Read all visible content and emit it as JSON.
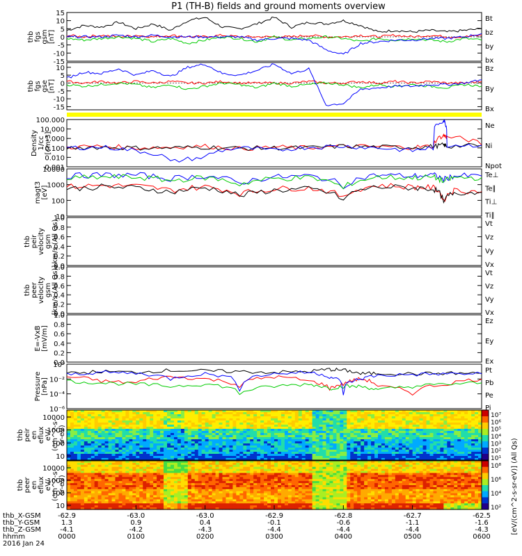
{
  "title": "P1 (TH-B) fields and ground moments overview",
  "colors": {
    "black": "#000000",
    "red": "#ff0000",
    "green": "#00cc00",
    "blue": "#0000ff",
    "yellow": "#ffff00"
  },
  "chart_data": [
    {
      "type": "line",
      "id": "fgs_gsm",
      "ylabel": [
        "thb",
        "fgs",
        "gsm",
        "[nT]"
      ],
      "yticks": [
        15,
        10,
        5,
        0,
        -5,
        -10,
        -15
      ],
      "ylim": [
        -15,
        15
      ],
      "legend": [
        {
          "name": "Bt",
          "color": "#000000"
        },
        {
          "name": "bz",
          "color": "#ff0000"
        },
        {
          "name": "by",
          "color": "#00cc00"
        },
        {
          "name": "bx",
          "color": "#0000ff"
        }
      ],
      "x_hours": [
        0,
        0.25,
        0.5,
        0.75,
        1.0,
        1.25,
        1.5,
        1.75,
        2.0,
        2.25,
        2.5,
        2.75,
        3.0,
        3.25,
        3.5,
        3.75,
        4.0,
        4.25,
        4.5,
        4.75,
        5.0,
        5.25,
        5.5,
        5.75,
        6.0
      ],
      "series": [
        {
          "name": "Bt",
          "color": "#000000",
          "values": [
            4,
            7,
            6,
            9,
            5,
            8,
            4,
            10,
            12,
            6,
            5,
            8,
            12,
            6,
            9,
            8,
            10,
            7,
            3,
            4,
            3,
            4,
            3,
            4,
            5
          ]
        },
        {
          "name": "bz",
          "color": "#ff0000",
          "values": [
            1,
            0,
            1,
            0,
            1,
            0,
            1,
            0,
            0,
            1,
            0,
            0,
            0,
            0,
            1,
            0,
            0,
            1,
            0,
            1,
            0,
            1,
            0,
            0,
            1
          ]
        },
        {
          "name": "by",
          "color": "#00cc00",
          "values": [
            -1,
            -2,
            -1,
            0,
            -1,
            -3,
            -1,
            -4,
            -2,
            0,
            -1,
            -3,
            0,
            -2,
            -1,
            0,
            -1,
            -3,
            -1,
            -2,
            -1,
            -2,
            -3,
            -1,
            -2
          ]
        },
        {
          "name": "bx",
          "color": "#0000ff",
          "values": [
            0,
            0,
            0,
            1,
            0,
            1,
            0,
            0,
            0,
            0,
            0,
            -2,
            -1,
            -1,
            -2,
            -8,
            -11,
            -4,
            -3,
            -2,
            -2,
            -1,
            -1,
            0,
            2
          ]
        }
      ]
    },
    {
      "type": "line",
      "id": "fgs_gse",
      "ylabel": [
        "thb",
        "fgs",
        "gse",
        "[nT]"
      ],
      "yticks": [
        10,
        5,
        0,
        -5,
        -10,
        -15
      ],
      "ylim": [
        -17,
        13
      ],
      "legend": [
        {
          "name": "Bz",
          "color": "#ff0000"
        },
        {
          "name": "By",
          "color": "#00cc00"
        },
        {
          "name": "Bx",
          "color": "#0000ff"
        }
      ],
      "x_hours": [
        0,
        0.25,
        0.5,
        0.75,
        1.0,
        1.25,
        1.5,
        1.75,
        2.0,
        2.25,
        2.5,
        2.75,
        3.0,
        3.25,
        3.5,
        3.75,
        4.0,
        4.25,
        4.5,
        4.75,
        5.0,
        5.25,
        5.5,
        5.75,
        6.0
      ],
      "series": [
        {
          "name": "Bz",
          "color": "#ff0000",
          "values": [
            1,
            0,
            1,
            0,
            1,
            0,
            1,
            0,
            0,
            1,
            0,
            0,
            0,
            0,
            1,
            0,
            0,
            1,
            0,
            1,
            0,
            1,
            0,
            0,
            1
          ]
        },
        {
          "name": "By",
          "color": "#00cc00",
          "values": [
            -1,
            -2,
            -1,
            0,
            -1,
            -3,
            -1,
            -4,
            -2,
            0,
            -1,
            -3,
            0,
            -2,
            -1,
            0,
            -1,
            -3,
            -1,
            -2,
            -1,
            -2,
            -3,
            -1,
            -2
          ]
        },
        {
          "name": "Bx",
          "color": "#0000ff",
          "values": [
            3,
            7,
            6,
            9,
            5,
            8,
            4,
            10,
            12,
            6,
            5,
            8,
            12,
            6,
            9,
            -14,
            -13,
            -4,
            -3,
            -2,
            -2,
            -1,
            -1,
            0,
            2
          ]
        }
      ]
    },
    {
      "type": "line",
      "id": "density",
      "scale": "log",
      "ylabel": [
        "Density",
        "1/cc",
        "[cm-3]"
      ],
      "yticks": [
        "100.000",
        "10.000",
        "1.000",
        "0.100",
        "0.010",
        "0.001"
      ],
      "ylim": [
        0.001,
        100
      ],
      "legend": [
        {
          "name": "Ne",
          "color": "#ff0000"
        },
        {
          "name": "Ni",
          "color": "#000000"
        },
        {
          "name": "Npot",
          "color": "#0000ff"
        }
      ],
      "x_hours": [
        0,
        0.5,
        1.0,
        1.5,
        2.0,
        2.5,
        3.0,
        3.5,
        4.0,
        4.5,
        5.0,
        5.3,
        5.45,
        5.5,
        6.0
      ],
      "series": [
        {
          "name": "Ne",
          "color": "#ff0000",
          "values": [
            0.12,
            0.15,
            0.1,
            0.12,
            0.15,
            0.08,
            0.12,
            0.1,
            0.15,
            0.13,
            0.12,
            0.15,
            2.0,
            1.5,
            0.2
          ]
        },
        {
          "name": "Ni",
          "color": "#000000",
          "values": [
            0.1,
            0.12,
            0.1,
            0.1,
            0.12,
            0.09,
            0.1,
            0.1,
            0.15,
            0.12,
            0.12,
            0.14,
            0.2,
            0.15,
            0.18
          ]
        },
        {
          "name": "Npot",
          "color": "#0000ff",
          "values": [
            0.1,
            0.12,
            0.05,
            0.003,
            0.01,
            0.1,
            0.05,
            0.12,
            0.15,
            0.1,
            0.05,
            0.1,
            80,
            0.2,
            0.2
          ]
        }
      ]
    },
    {
      "type": "line",
      "id": "temperature",
      "scale": "log",
      "ylabel": [
        "magt3",
        "[eV]"
      ],
      "yticks": [
        "10000",
        "1000",
        "100",
        "10"
      ],
      "ylim": [
        1,
        10000
      ],
      "legend": [
        {
          "name": "Te⊥",
          "color": "#ff0000"
        },
        {
          "name": "Te∥",
          "color": "#000000"
        },
        {
          "name": "Ti⊥",
          "color": "#0000ff"
        },
        {
          "name": "Ti∥",
          "color": "#00cc00"
        }
      ],
      "x_hours": [
        0,
        0.5,
        1.0,
        1.5,
        2.0,
        2.5,
        3.0,
        3.5,
        4.0,
        4.5,
        5.0,
        5.3,
        5.45,
        5.6,
        6.0
      ],
      "series": [
        {
          "name": "Te⊥",
          "color": "#ff0000",
          "values": [
            300,
            400,
            350,
            150,
            300,
            80,
            200,
            250,
            30,
            400,
            300,
            250,
            15,
            150,
            120
          ]
        },
        {
          "name": "Te∥",
          "color": "#000000",
          "values": [
            200,
            300,
            250,
            100,
            250,
            50,
            150,
            200,
            20,
            300,
            250,
            200,
            10,
            100,
            100
          ]
        },
        {
          "name": "Ti⊥",
          "color": "#0000ff",
          "values": [
            2500,
            3000,
            3000,
            1500,
            2500,
            600,
            2000,
            2500,
            300,
            3000,
            2500,
            3000,
            1200,
            2500,
            2500
          ]
        },
        {
          "name": "Ti∥",
          "color": "#00cc00",
          "values": [
            1500,
            2000,
            2000,
            1000,
            1800,
            500,
            1500,
            1800,
            200,
            2000,
            1800,
            2000,
            800,
            1800,
            1800
          ]
        }
      ]
    },
    {
      "type": "line",
      "id": "peir_velocity",
      "ylabel": [
        "thb",
        "peir",
        "velocity",
        "gsm",
        "km/s (All Qs)"
      ],
      "yticks": [
        "1.0",
        "0.8",
        "0.6",
        "0.4",
        "0.2",
        "0.0"
      ],
      "ylim": [
        0,
        1
      ],
      "legend": [
        {
          "name": "Vt",
          "color": "#000000"
        },
        {
          "name": "Vz",
          "color": "#ff0000"
        },
        {
          "name": "Vy",
          "color": "#00cc00"
        },
        {
          "name": "Vx",
          "color": "#0000ff"
        }
      ],
      "series": []
    },
    {
      "type": "line",
      "id": "peer_velocity",
      "ylabel": [
        "thb",
        "peer",
        "velocity",
        "gsm",
        "[km/s (All Qs)]"
      ],
      "yticks": [
        "1.0",
        "0.8",
        "0.6",
        "0.4",
        "0.2",
        "0.0"
      ],
      "ylim": [
        0,
        1
      ],
      "legend": [
        {
          "name": "Vt",
          "color": "#000000"
        },
        {
          "name": "Vz",
          "color": "#ff0000"
        },
        {
          "name": "Vy",
          "color": "#00cc00"
        },
        {
          "name": "Vx",
          "color": "#0000ff"
        }
      ],
      "series": []
    },
    {
      "type": "line",
      "id": "efield",
      "ylabel": [
        "E=-VxB",
        "[mV/m]"
      ],
      "yticks": [
        "1.0",
        "0.8",
        "0.6",
        "0.4",
        "0.2",
        "0.0"
      ],
      "ylim": [
        0,
        1
      ],
      "legend": [
        {
          "name": "Ez",
          "color": "#ff0000"
        },
        {
          "name": "Ey",
          "color": "#00cc00"
        },
        {
          "name": "Ex",
          "color": "#0000ff"
        }
      ],
      "series": []
    },
    {
      "type": "line",
      "id": "pressure",
      "scale": "log",
      "ylabel": [
        "Pressure",
        "[nPa]"
      ],
      "yticks": [
        "10⁰",
        "10⁻²",
        "10⁻⁴",
        "10⁻⁶"
      ],
      "ylim": [
        1e-06,
        1
      ],
      "legend": [
        {
          "name": "Pt",
          "color": "#000000"
        },
        {
          "name": "Pb",
          "color": "#ff0000"
        },
        {
          "name": "Pe",
          "color": "#00cc00"
        },
        {
          "name": "Pi",
          "color": "#0000ff"
        }
      ],
      "x_hours": [
        0,
        0.5,
        1.0,
        1.5,
        2.0,
        2.5,
        3.0,
        3.5,
        3.8,
        4.0,
        4.25,
        4.5,
        5.0,
        5.5,
        6.0
      ],
      "series": [
        {
          "name": "Pt",
          "color": "#000000",
          "values": [
            0.05,
            0.1,
            0.08,
            0.15,
            0.12,
            0.1,
            0.08,
            0.1,
            0.2,
            0.15,
            0.05,
            0.06,
            0.05,
            0.06,
            0.06
          ]
        },
        {
          "name": "Pb",
          "color": "#ff0000",
          "values": [
            0.02,
            0.005,
            0.003,
            0.02,
            0.01,
            0.001,
            0.02,
            0.005,
            0.0005,
            0.002,
            0.01,
            0.001,
            0.0001,
            0.002,
            0.01
          ]
        },
        {
          "name": "Pe",
          "color": "#00cc00",
          "values": [
            0.005,
            0.003,
            0.002,
            0.001,
            0.002,
            0.0001,
            0.001,
            0.002,
            0.0005,
            0.001,
            0.001,
            0.0003,
            0.001,
            0.002,
            0.003
          ]
        },
        {
          "name": "Pi",
          "color": "#0000ff",
          "values": [
            0.04,
            0.08,
            0.06,
            0.01,
            0.05,
            0.0003,
            0.05,
            0.08,
            0.02,
            0.0001,
            0.01,
            0.03,
            0.04,
            0.05,
            0.05
          ]
        }
      ]
    },
    {
      "type": "heatmap",
      "id": "peir_en_eflux",
      "ylabel": [
        "thb",
        "peir",
        "en",
        "eflux",
        "eV/",
        "(cm^2-s-",
        "sr-eV)"
      ],
      "yticks": [
        "10000",
        "1000",
        "100",
        "10"
      ],
      "colorbar_ticks": [
        "10⁷",
        "10⁶",
        "10⁵",
        "10⁴",
        "10³",
        "10²",
        "10¹"
      ]
    },
    {
      "type": "heatmap",
      "id": "peer_en_eflux",
      "ylabel": [
        "thb",
        "peer",
        "en",
        "eflux",
        "eV/",
        "(cm^2-s-",
        "sr-eV)"
      ],
      "yticks": [
        "10000",
        "1000",
        "100",
        "10"
      ],
      "colorbar_ticks": [
        "10⁸",
        "10⁶",
        "10⁴",
        "10²"
      ],
      "colorbar_label": "[eV/(cm^2-s-sr-eV)] (All Qs)"
    }
  ],
  "xaxis": {
    "rows": [
      {
        "label": "thb_X-GSM",
        "values": [
          "-62.9",
          "-63.0",
          "-63.0",
          "-62.9",
          "-62.8",
          "-62.7",
          "-62.5"
        ]
      },
      {
        "label": "thb_Y-GSM",
        "values": [
          "1.3",
          "0.9",
          "0.4",
          "-0.1",
          "-0.6",
          "-1.1",
          "-1.6"
        ]
      },
      {
        "label": "thb_Z-GSM",
        "values": [
          "-4.1",
          "-4.2",
          "-4.3",
          "-4.4",
          "-4.4",
          "-4.4",
          "-4.3"
        ]
      },
      {
        "label": "hhmm",
        "values": [
          "0000",
          "0100",
          "0200",
          "0300",
          "0400",
          "0500",
          "0600"
        ]
      }
    ],
    "date": "2016 Jan 24"
  }
}
